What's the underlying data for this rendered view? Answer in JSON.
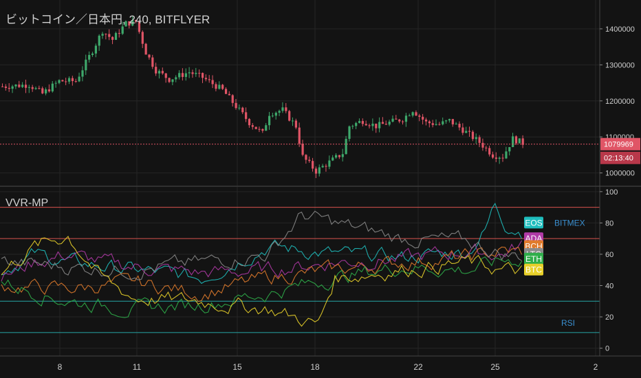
{
  "header": {
    "title": "ビットコイン／日本円, 240, BITFLYER"
  },
  "indicator": {
    "title": "VVR-MP",
    "label_exchange": "BITMEX",
    "label_rsi": "RSI"
  },
  "colors": {
    "background": "#131313",
    "up": "#3ea86b",
    "down": "#e05566",
    "grid": "#262626",
    "axis_text": "#cfcfcf",
    "level_red": "#d9534f",
    "level_cyan": "#26a6a6"
  },
  "chart_data": [
    {
      "type": "candlestick",
      "title": "ビットコイン／日本円, 240, BITFLYER",
      "x_tick_labels": [
        "8",
        "11",
        "15",
        "18",
        "22",
        "25",
        "2"
      ],
      "y_tick_labels": [
        "1000000",
        "1100000",
        "1200000",
        "1300000",
        "1400000"
      ],
      "ylim": [
        965000,
        1480000
      ],
      "last_price": 1079969,
      "last_price_label": "1079969",
      "countdown": "02:13:40",
      "waypoints": [
        [
          0,
          1240000
        ],
        [
          8,
          1245000
        ],
        [
          12,
          1220000
        ],
        [
          17,
          1255000
        ],
        [
          22,
          1255000
        ],
        [
          27,
          1340000
        ],
        [
          30,
          1395000
        ],
        [
          33,
          1370000
        ],
        [
          37,
          1415000
        ],
        [
          40,
          1420000
        ],
        [
          43,
          1335000
        ],
        [
          46,
          1285000
        ],
        [
          50,
          1260000
        ],
        [
          56,
          1280000
        ],
        [
          60,
          1265000
        ],
        [
          66,
          1230000
        ],
        [
          70,
          1185000
        ],
        [
          74,
          1140000
        ],
        [
          78,
          1110000
        ],
        [
          80,
          1165000
        ],
        [
          84,
          1175000
        ],
        [
          88,
          1130000
        ],
        [
          90,
          1045000
        ],
        [
          94,
          1005000
        ],
        [
          98,
          1030000
        ],
        [
          102,
          1055000
        ],
        [
          104,
          1130000
        ],
        [
          108,
          1145000
        ],
        [
          112,
          1130000
        ],
        [
          116,
          1140000
        ],
        [
          120,
          1150000
        ],
        [
          123,
          1175000
        ],
        [
          127,
          1140000
        ],
        [
          131,
          1135000
        ],
        [
          134,
          1145000
        ],
        [
          138,
          1120000
        ],
        [
          143,
          1085000
        ],
        [
          147,
          1050000
        ],
        [
          150,
          1045000
        ],
        [
          153,
          1095000
        ],
        [
          156,
          1083000
        ]
      ]
    },
    {
      "type": "line",
      "title": "VVR-MP",
      "y_tick_labels": [
        "0",
        "20",
        "40",
        "60",
        "80",
        "100"
      ],
      "ylim": [
        -5,
        103
      ],
      "levels": [
        {
          "value": 90,
          "color": "#d9534f"
        },
        {
          "value": 70,
          "color": "#d9534f"
        },
        {
          "value": 30,
          "color": "#26a6a6"
        },
        {
          "value": 10,
          "color": "#26a6a6"
        }
      ],
      "series": [
        {
          "name": "EOS",
          "color": "#1fbdbd",
          "waypoints": [
            [
              0,
              50
            ],
            [
              10,
              60
            ],
            [
              20,
              55
            ],
            [
              40,
              50
            ],
            [
              60,
              45
            ],
            [
              80,
              65
            ],
            [
              100,
              60
            ],
            [
              120,
              58
            ],
            [
              140,
              62
            ],
            [
              145,
              75
            ],
            [
              148,
              92
            ],
            [
              151,
              80
            ],
            [
              156,
              75
            ]
          ]
        },
        {
          "name": "ADA",
          "color": "#b03aa6",
          "waypoints": [
            [
              0,
              45
            ],
            [
              10,
              55
            ],
            [
              20,
              60
            ],
            [
              30,
              55
            ],
            [
              40,
              52
            ],
            [
              60,
              48
            ],
            [
              80,
              50
            ],
            [
              100,
              55
            ],
            [
              120,
              57
            ],
            [
              140,
              62
            ],
            [
              150,
              60
            ],
            [
              156,
              66
            ]
          ]
        },
        {
          "name": "BCH",
          "color": "#e07b2c",
          "waypoints": [
            [
              0,
              40
            ],
            [
              20,
              38
            ],
            [
              40,
              42
            ],
            [
              60,
              35
            ],
            [
              80,
              45
            ],
            [
              100,
              50
            ],
            [
              120,
              55
            ],
            [
              140,
              58
            ],
            [
              150,
              62
            ],
            [
              156,
              61
            ]
          ]
        },
        {
          "name": "LTC",
          "color": "#8a8a8a",
          "waypoints": [
            [
              0,
              55
            ],
            [
              20,
              52
            ],
            [
              40,
              50
            ],
            [
              60,
              55
            ],
            [
              80,
              60
            ],
            [
              90,
              85
            ],
            [
              100,
              80
            ],
            [
              120,
              70
            ],
            [
              140,
              68
            ],
            [
              150,
              60
            ],
            [
              156,
              59
            ]
          ]
        },
        {
          "name": "ETH",
          "color": "#2fae4a",
          "waypoints": [
            [
              0,
              42
            ],
            [
              20,
              30
            ],
            [
              40,
              25
            ],
            [
              60,
              28
            ],
            [
              80,
              35
            ],
            [
              100,
              45
            ],
            [
              120,
              52
            ],
            [
              140,
              50
            ],
            [
              150,
              56
            ],
            [
              156,
              57
            ]
          ]
        },
        {
          "name": "BTC",
          "color": "#e8d02a",
          "waypoints": [
            [
              0,
              48
            ],
            [
              10,
              65
            ],
            [
              20,
              72
            ],
            [
              30,
              45
            ],
            [
              40,
              32
            ],
            [
              60,
              30
            ],
            [
              80,
              25
            ],
            [
              95,
              15
            ],
            [
              100,
              45
            ],
            [
              120,
              50
            ],
            [
              140,
              55
            ],
            [
              150,
              50
            ],
            [
              156,
              49
            ]
          ]
        }
      ]
    }
  ]
}
